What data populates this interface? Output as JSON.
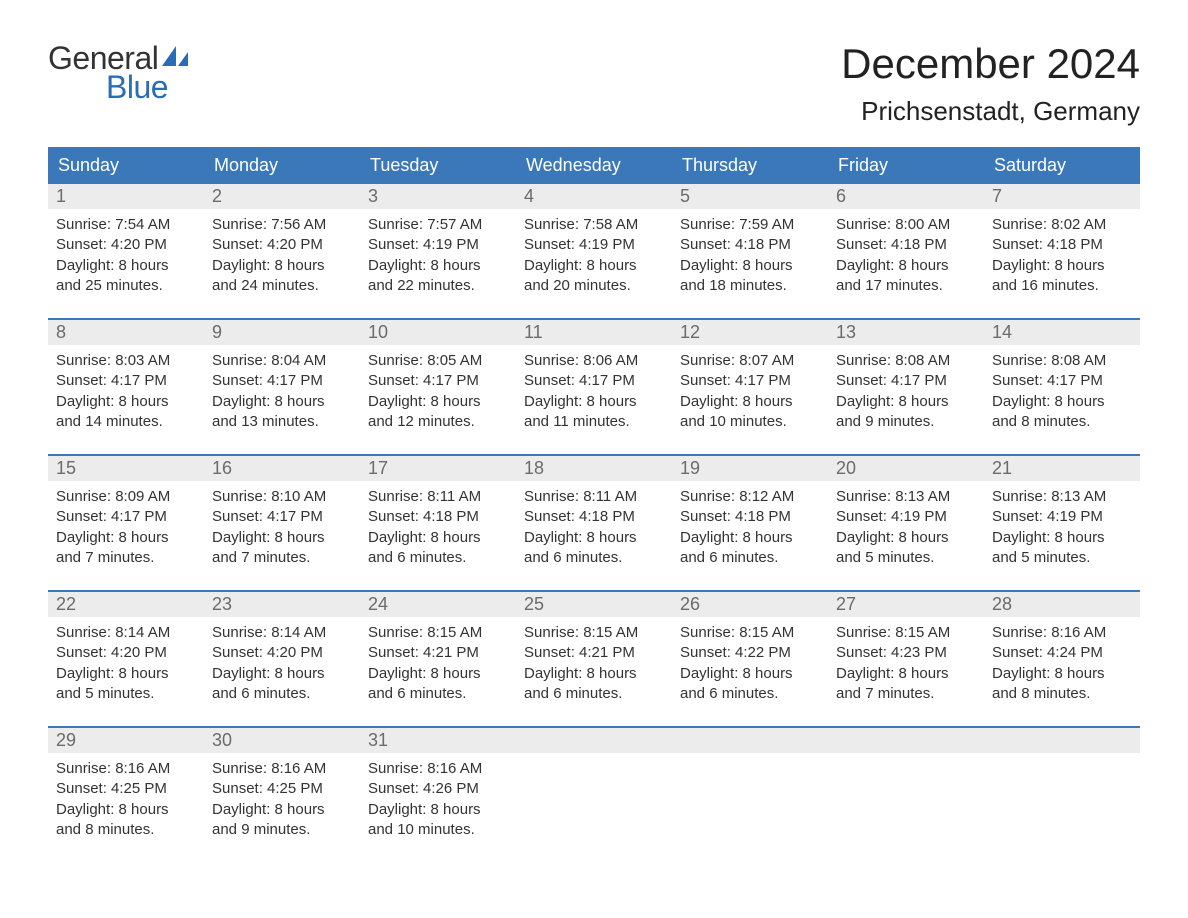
{
  "brand": {
    "word1": "General",
    "word2": "Blue",
    "text_color": "#333333",
    "accent_color": "#2a6db5"
  },
  "title": {
    "month": "December 2024",
    "location": "Prichsenstadt, Germany",
    "title_fontsize": 42,
    "location_fontsize": 26
  },
  "colors": {
    "header_bg": "#3a78b9",
    "header_text": "#ffffff",
    "daynum_bg": "#ececec",
    "daynum_text": "#6b6b6b",
    "body_text": "#333333",
    "week_divider": "#3a78b9",
    "page_bg": "#ffffff"
  },
  "typography": {
    "body_fontsize": 15,
    "header_fontsize": 18,
    "daynum_fontsize": 18,
    "font_family": "Arial"
  },
  "calendar": {
    "type": "table",
    "weekdays": [
      "Sunday",
      "Monday",
      "Tuesday",
      "Wednesday",
      "Thursday",
      "Friday",
      "Saturday"
    ],
    "labels": {
      "sunrise": "Sunrise:",
      "sunset": "Sunset:",
      "daylight": "Daylight:"
    },
    "weeks": [
      [
        {
          "day": 1,
          "sunrise": "7:54 AM",
          "sunset": "4:20 PM",
          "daylight_l1": "8 hours",
          "daylight_l2": "and 25 minutes."
        },
        {
          "day": 2,
          "sunrise": "7:56 AM",
          "sunset": "4:20 PM",
          "daylight_l1": "8 hours",
          "daylight_l2": "and 24 minutes."
        },
        {
          "day": 3,
          "sunrise": "7:57 AM",
          "sunset": "4:19 PM",
          "daylight_l1": "8 hours",
          "daylight_l2": "and 22 minutes."
        },
        {
          "day": 4,
          "sunrise": "7:58 AM",
          "sunset": "4:19 PM",
          "daylight_l1": "8 hours",
          "daylight_l2": "and 20 minutes."
        },
        {
          "day": 5,
          "sunrise": "7:59 AM",
          "sunset": "4:18 PM",
          "daylight_l1": "8 hours",
          "daylight_l2": "and 18 minutes."
        },
        {
          "day": 6,
          "sunrise": "8:00 AM",
          "sunset": "4:18 PM",
          "daylight_l1": "8 hours",
          "daylight_l2": "and 17 minutes."
        },
        {
          "day": 7,
          "sunrise": "8:02 AM",
          "sunset": "4:18 PM",
          "daylight_l1": "8 hours",
          "daylight_l2": "and 16 minutes."
        }
      ],
      [
        {
          "day": 8,
          "sunrise": "8:03 AM",
          "sunset": "4:17 PM",
          "daylight_l1": "8 hours",
          "daylight_l2": "and 14 minutes."
        },
        {
          "day": 9,
          "sunrise": "8:04 AM",
          "sunset": "4:17 PM",
          "daylight_l1": "8 hours",
          "daylight_l2": "and 13 minutes."
        },
        {
          "day": 10,
          "sunrise": "8:05 AM",
          "sunset": "4:17 PM",
          "daylight_l1": "8 hours",
          "daylight_l2": "and 12 minutes."
        },
        {
          "day": 11,
          "sunrise": "8:06 AM",
          "sunset": "4:17 PM",
          "daylight_l1": "8 hours",
          "daylight_l2": "and 11 minutes."
        },
        {
          "day": 12,
          "sunrise": "8:07 AM",
          "sunset": "4:17 PM",
          "daylight_l1": "8 hours",
          "daylight_l2": "and 10 minutes."
        },
        {
          "day": 13,
          "sunrise": "8:08 AM",
          "sunset": "4:17 PM",
          "daylight_l1": "8 hours",
          "daylight_l2": "and 9 minutes."
        },
        {
          "day": 14,
          "sunrise": "8:08 AM",
          "sunset": "4:17 PM",
          "daylight_l1": "8 hours",
          "daylight_l2": "and 8 minutes."
        }
      ],
      [
        {
          "day": 15,
          "sunrise": "8:09 AM",
          "sunset": "4:17 PM",
          "daylight_l1": "8 hours",
          "daylight_l2": "and 7 minutes."
        },
        {
          "day": 16,
          "sunrise": "8:10 AM",
          "sunset": "4:17 PM",
          "daylight_l1": "8 hours",
          "daylight_l2": "and 7 minutes."
        },
        {
          "day": 17,
          "sunrise": "8:11 AM",
          "sunset": "4:18 PM",
          "daylight_l1": "8 hours",
          "daylight_l2": "and 6 minutes."
        },
        {
          "day": 18,
          "sunrise": "8:11 AM",
          "sunset": "4:18 PM",
          "daylight_l1": "8 hours",
          "daylight_l2": "and 6 minutes."
        },
        {
          "day": 19,
          "sunrise": "8:12 AM",
          "sunset": "4:18 PM",
          "daylight_l1": "8 hours",
          "daylight_l2": "and 6 minutes."
        },
        {
          "day": 20,
          "sunrise": "8:13 AM",
          "sunset": "4:19 PM",
          "daylight_l1": "8 hours",
          "daylight_l2": "and 5 minutes."
        },
        {
          "day": 21,
          "sunrise": "8:13 AM",
          "sunset": "4:19 PM",
          "daylight_l1": "8 hours",
          "daylight_l2": "and 5 minutes."
        }
      ],
      [
        {
          "day": 22,
          "sunrise": "8:14 AM",
          "sunset": "4:20 PM",
          "daylight_l1": "8 hours",
          "daylight_l2": "and 5 minutes."
        },
        {
          "day": 23,
          "sunrise": "8:14 AM",
          "sunset": "4:20 PM",
          "daylight_l1": "8 hours",
          "daylight_l2": "and 6 minutes."
        },
        {
          "day": 24,
          "sunrise": "8:15 AM",
          "sunset": "4:21 PM",
          "daylight_l1": "8 hours",
          "daylight_l2": "and 6 minutes."
        },
        {
          "day": 25,
          "sunrise": "8:15 AM",
          "sunset": "4:21 PM",
          "daylight_l1": "8 hours",
          "daylight_l2": "and 6 minutes."
        },
        {
          "day": 26,
          "sunrise": "8:15 AM",
          "sunset": "4:22 PM",
          "daylight_l1": "8 hours",
          "daylight_l2": "and 6 minutes."
        },
        {
          "day": 27,
          "sunrise": "8:15 AM",
          "sunset": "4:23 PM",
          "daylight_l1": "8 hours",
          "daylight_l2": "and 7 minutes."
        },
        {
          "day": 28,
          "sunrise": "8:16 AM",
          "sunset": "4:24 PM",
          "daylight_l1": "8 hours",
          "daylight_l2": "and 8 minutes."
        }
      ],
      [
        {
          "day": 29,
          "sunrise": "8:16 AM",
          "sunset": "4:25 PM",
          "daylight_l1": "8 hours",
          "daylight_l2": "and 8 minutes."
        },
        {
          "day": 30,
          "sunrise": "8:16 AM",
          "sunset": "4:25 PM",
          "daylight_l1": "8 hours",
          "daylight_l2": "and 9 minutes."
        },
        {
          "day": 31,
          "sunrise": "8:16 AM",
          "sunset": "4:26 PM",
          "daylight_l1": "8 hours",
          "daylight_l2": "and 10 minutes."
        },
        null,
        null,
        null,
        null
      ]
    ]
  }
}
